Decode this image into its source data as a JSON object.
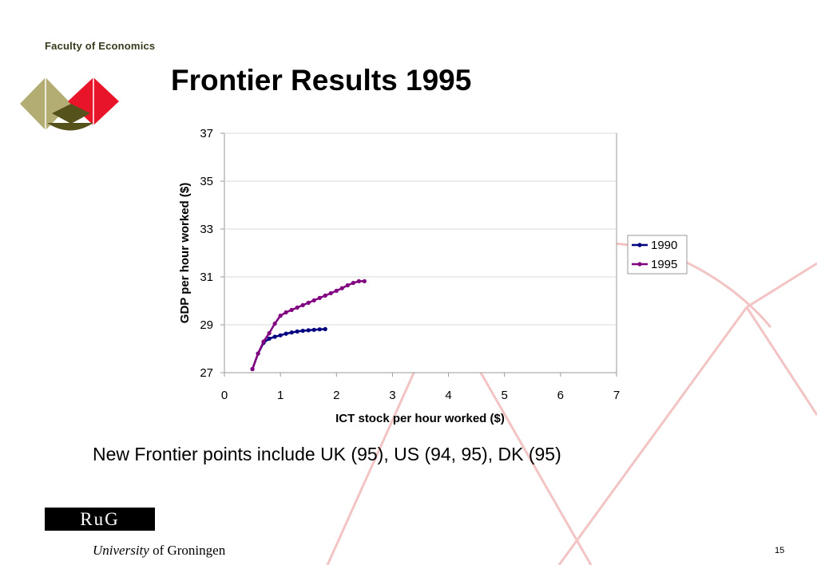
{
  "slide": {
    "faculty": "Faculty of Economics",
    "title": "Frontier Results 1995",
    "caption": "New Frontier points include   UK (95), US (94, 95), DK (95)",
    "logo_text": "RuG",
    "university_italic": "University",
    "university_rest": " of Groningen",
    "page_number": "15"
  },
  "colors": {
    "series_1990": "#000080",
    "series_1995": "#800080",
    "background_arcs": "#f3c4c4",
    "logo_olive": "#b3ad73",
    "logo_dark_olive": "#56521c",
    "logo_red": "#e8142a"
  },
  "chart_data": {
    "type": "line",
    "title": "",
    "xlabel": "ICT stock per hour worked ($)",
    "ylabel": "GDP per hour worked ($)",
    "xlim": [
      0,
      7
    ],
    "ylim": [
      27,
      37
    ],
    "x_ticks": [
      "0",
      "1",
      "2",
      "3",
      "4",
      "5",
      "6",
      "7"
    ],
    "y_ticks": [
      "27",
      "29",
      "31",
      "33",
      "35",
      "37"
    ],
    "grid": "horizontal",
    "legend_position": "right",
    "series": [
      {
        "name": "1990",
        "color": "#000080",
        "points": [
          [
            0.5,
            27.15
          ],
          [
            0.6,
            27.8
          ],
          [
            0.7,
            28.25
          ],
          [
            0.8,
            28.42
          ],
          [
            0.9,
            28.5
          ],
          [
            1.0,
            28.56
          ],
          [
            1.1,
            28.63
          ],
          [
            1.2,
            28.68
          ],
          [
            1.3,
            28.72
          ],
          [
            1.4,
            28.75
          ],
          [
            1.5,
            28.77
          ],
          [
            1.6,
            28.79
          ],
          [
            1.7,
            28.81
          ],
          [
            1.8,
            28.82
          ]
        ]
      },
      {
        "name": "1995",
        "color": "#800080",
        "points": [
          [
            0.5,
            27.15
          ],
          [
            0.6,
            27.8
          ],
          [
            0.7,
            28.3
          ],
          [
            0.8,
            28.65
          ],
          [
            0.9,
            29.05
          ],
          [
            1.0,
            29.38
          ],
          [
            1.1,
            29.52
          ],
          [
            1.2,
            29.62
          ],
          [
            1.3,
            29.72
          ],
          [
            1.4,
            29.82
          ],
          [
            1.5,
            29.92
          ],
          [
            1.6,
            30.02
          ],
          [
            1.7,
            30.12
          ],
          [
            1.8,
            30.22
          ],
          [
            1.9,
            30.32
          ],
          [
            2.0,
            30.42
          ],
          [
            2.1,
            30.53
          ],
          [
            2.2,
            30.65
          ],
          [
            2.3,
            30.75
          ],
          [
            2.4,
            30.82
          ],
          [
            2.5,
            30.82
          ]
        ]
      }
    ]
  }
}
